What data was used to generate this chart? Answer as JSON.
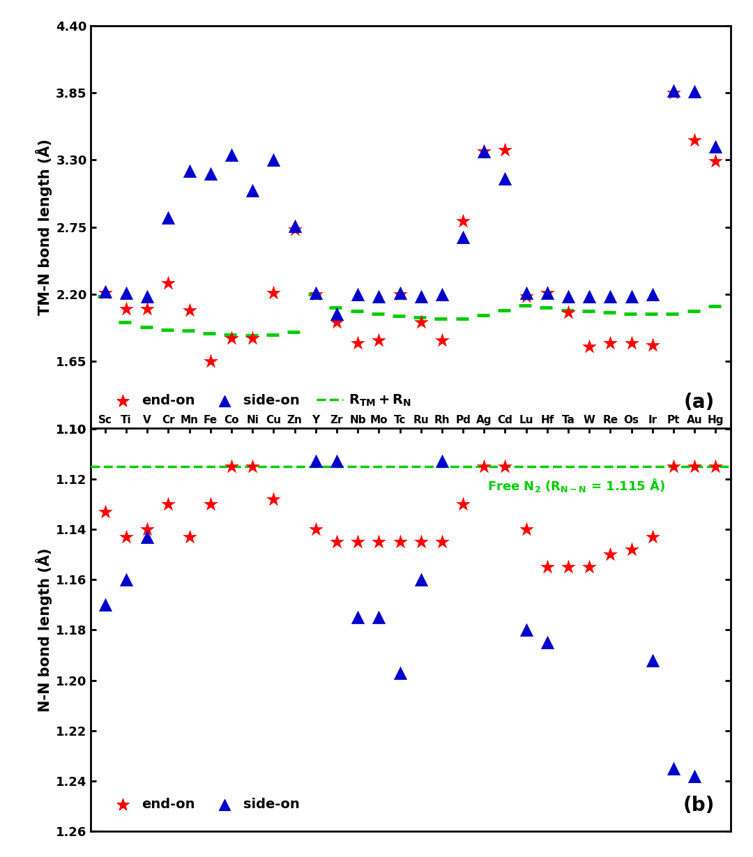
{
  "elements": [
    "Sc",
    "Ti",
    "V",
    "Cr",
    "Mn",
    "Fe",
    "Co",
    "Ni",
    "Cu",
    "Zn",
    "Y",
    "Zr",
    "Nb",
    "Mo",
    "Tc",
    "Ru",
    "Rh",
    "Pd",
    "Ag",
    "Cd",
    "Lu",
    "Hf",
    "Ta",
    "W",
    "Re",
    "Os",
    "Ir",
    "Pt",
    "Au",
    "Hg"
  ],
  "end_on_a": [
    2.21,
    2.08,
    2.08,
    2.29,
    2.07,
    1.65,
    1.84,
    1.84,
    2.21,
    2.73,
    2.2,
    1.97,
    1.8,
    1.82,
    2.2,
    1.97,
    1.82,
    2.8,
    3.37,
    3.38,
    2.18,
    2.21,
    2.05,
    1.77,
    1.8,
    1.8,
    1.78,
    3.85,
    3.46,
    3.29
  ],
  "side_on_a": [
    2.22,
    2.21,
    2.18,
    2.83,
    3.21,
    3.19,
    3.34,
    3.05,
    3.3,
    2.76,
    2.21,
    2.04,
    2.2,
    2.18,
    2.21,
    2.18,
    2.2,
    2.67,
    3.37,
    3.15,
    2.21,
    2.21,
    2.18,
    2.18,
    2.18,
    2.18,
    2.2,
    3.87,
    3.86,
    3.41
  ],
  "rtm_rn": [
    2.18,
    1.97,
    1.93,
    1.91,
    1.9,
    1.88,
    1.87,
    1.86,
    1.87,
    1.89,
    2.2,
    2.09,
    2.06,
    2.04,
    2.02,
    2.01,
    2.0,
    2.0,
    2.03,
    2.07,
    2.11,
    2.09,
    2.07,
    2.06,
    2.05,
    2.04,
    2.04,
    2.04,
    2.06,
    2.1
  ],
  "end_on_b": [
    1.133,
    1.143,
    1.14,
    1.13,
    1.143,
    1.13,
    1.115,
    1.115,
    1.128,
    null,
    1.14,
    1.145,
    1.145,
    1.145,
    1.145,
    1.145,
    1.145,
    1.13,
    1.115,
    1.115,
    1.14,
    1.155,
    1.155,
    1.155,
    1.15,
    1.148,
    1.143,
    1.115,
    1.115,
    1.115
  ],
  "side_on_b": [
    1.17,
    1.16,
    1.143,
    null,
    null,
    null,
    null,
    null,
    null,
    null,
    1.113,
    1.113,
    1.175,
    1.175,
    1.197,
    1.16,
    1.113,
    null,
    null,
    null,
    1.18,
    1.185,
    null,
    null,
    null,
    null,
    1.192,
    1.235,
    1.238,
    null
  ],
  "free_n2": 1.115,
  "red_color": "#FF0000",
  "blue_color": "#0000CC",
  "green_color": "#00CC00"
}
